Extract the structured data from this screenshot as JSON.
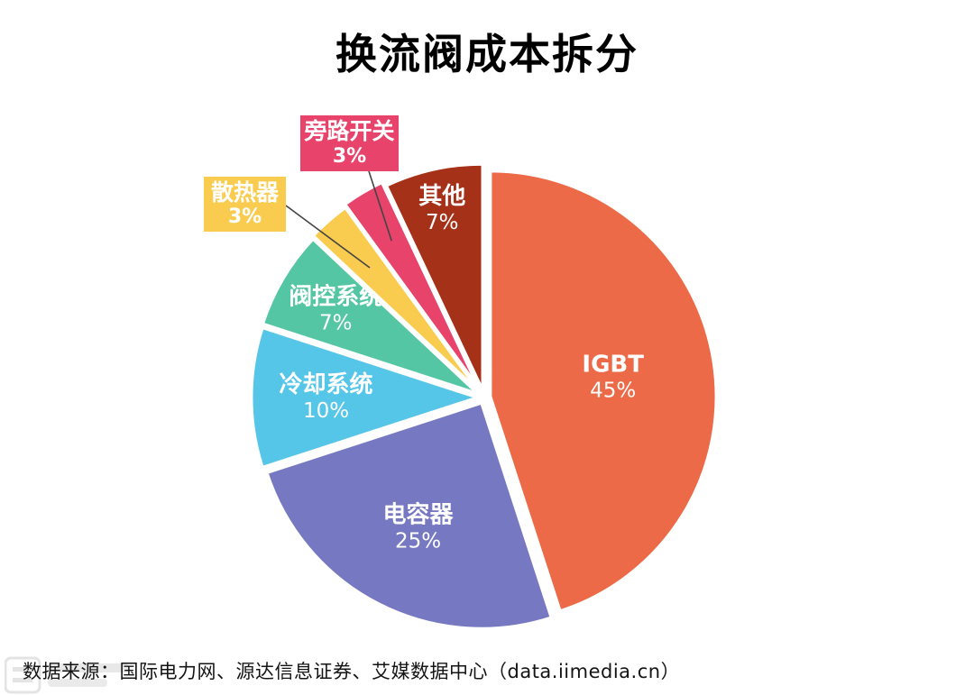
{
  "title": "换流阀成本拆分",
  "footer": {
    "text": "数据来源：国际电力网、源达信息证券、艾媒数据中心（data.iimedia.cn）"
  },
  "chart_data": {
    "type": "pie",
    "title": "换流阀成本拆分",
    "start_angle_deg": 0,
    "direction": "clockwise",
    "legend": "none",
    "label_text_color": "#ffffff",
    "leader_line_color": "#444444",
    "segments": [
      {
        "id": "igbt",
        "label": "IGBT",
        "value": 45,
        "value_label": "45%",
        "color": "#EC6A47",
        "label_pos": "inside",
        "label_frac": 0.55
      },
      {
        "id": "capacitor",
        "label": "电容器",
        "value": 25,
        "value_label": "25%",
        "color": "#7679C1",
        "label_pos": "inside",
        "label_frac": 0.62
      },
      {
        "id": "cooling-system",
        "label": "冷却系统",
        "value": 10,
        "value_label": "10%",
        "color": "#55C5E8",
        "label_pos": "inside",
        "label_frac": 0.67
      },
      {
        "id": "valve-control-system",
        "label": "阀控系统",
        "value": 7,
        "value_label": "7%",
        "color": "#54C6A4",
        "label_pos": "inside",
        "label_frac": 0.73
      },
      {
        "id": "radiator",
        "label": "散热器",
        "value": 3,
        "value_label": "3%",
        "color": "#F9CC4F",
        "label_pos": "outside"
      },
      {
        "id": "bypass-switch",
        "label": "旁路开关",
        "value": 3,
        "value_label": "3%",
        "color": "#E8436B",
        "label_pos": "outside"
      },
      {
        "id": "other",
        "label": "其他",
        "value": 7,
        "value_label": "7%",
        "color": "#A63119",
        "label_pos": "inside",
        "label_frac": 0.82
      }
    ]
  }
}
